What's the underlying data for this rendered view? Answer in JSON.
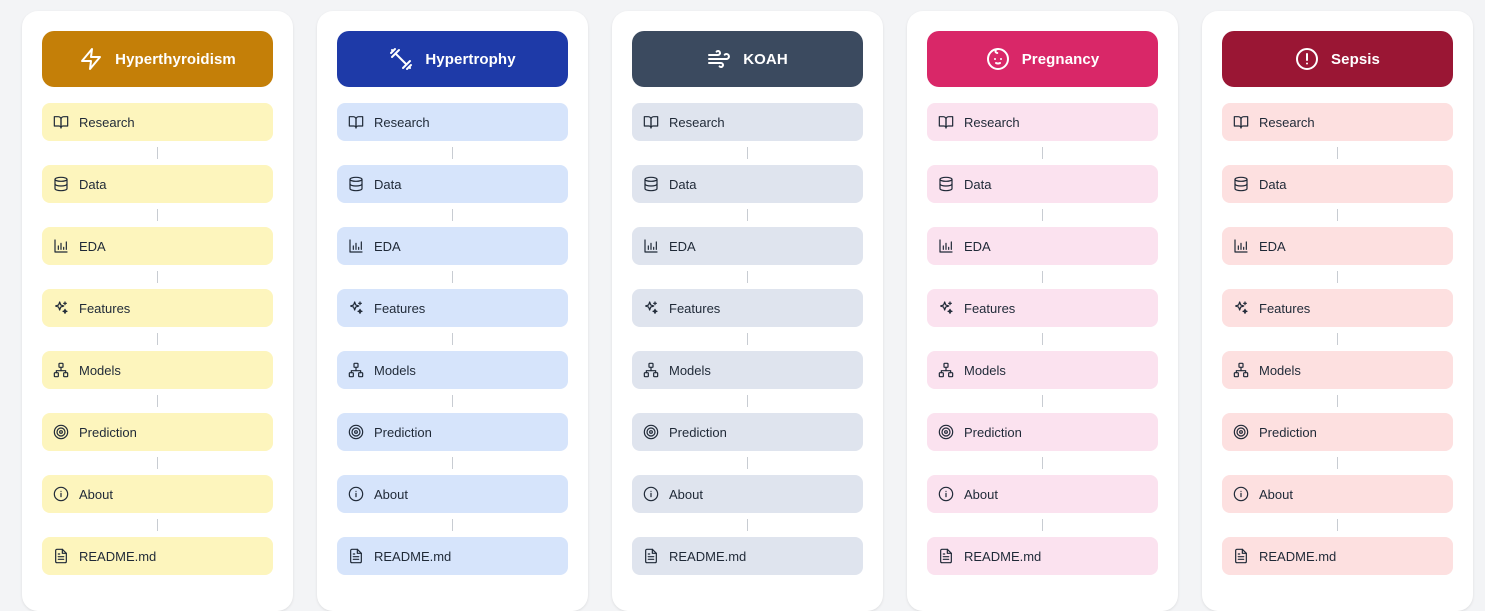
{
  "steps": [
    {
      "label": "Research",
      "icon": "book-open-icon"
    },
    {
      "label": "Data",
      "icon": "database-icon"
    },
    {
      "label": "EDA",
      "icon": "bar-chart-icon"
    },
    {
      "label": "Features",
      "icon": "sparkles-icon"
    },
    {
      "label": "Models",
      "icon": "network-icon"
    },
    {
      "label": "Prediction",
      "icon": "target-icon"
    },
    {
      "label": "About",
      "icon": "info-icon"
    },
    {
      "label": "README.md",
      "icon": "file-text-icon"
    }
  ],
  "projects": [
    {
      "title": "Hyperthyroidism",
      "icon": "zap-icon",
      "header_color": "#c47f08",
      "step_color": "#fdf5bd"
    },
    {
      "title": "Hypertrophy",
      "icon": "dumbbell-icon",
      "header_color": "#1e3aa8",
      "step_color": "#d6e4fb"
    },
    {
      "title": "KOAH",
      "icon": "wind-icon",
      "header_color": "#3b4a5f",
      "step_color": "#dfe4ee"
    },
    {
      "title": "Pregnancy",
      "icon": "baby-icon",
      "header_color": "#d92768",
      "step_color": "#fbe2ef"
    },
    {
      "title": "Sepsis",
      "icon": "alert-circle-icon",
      "header_color": "#9a1634",
      "step_color": "#fde0e0"
    }
  ]
}
